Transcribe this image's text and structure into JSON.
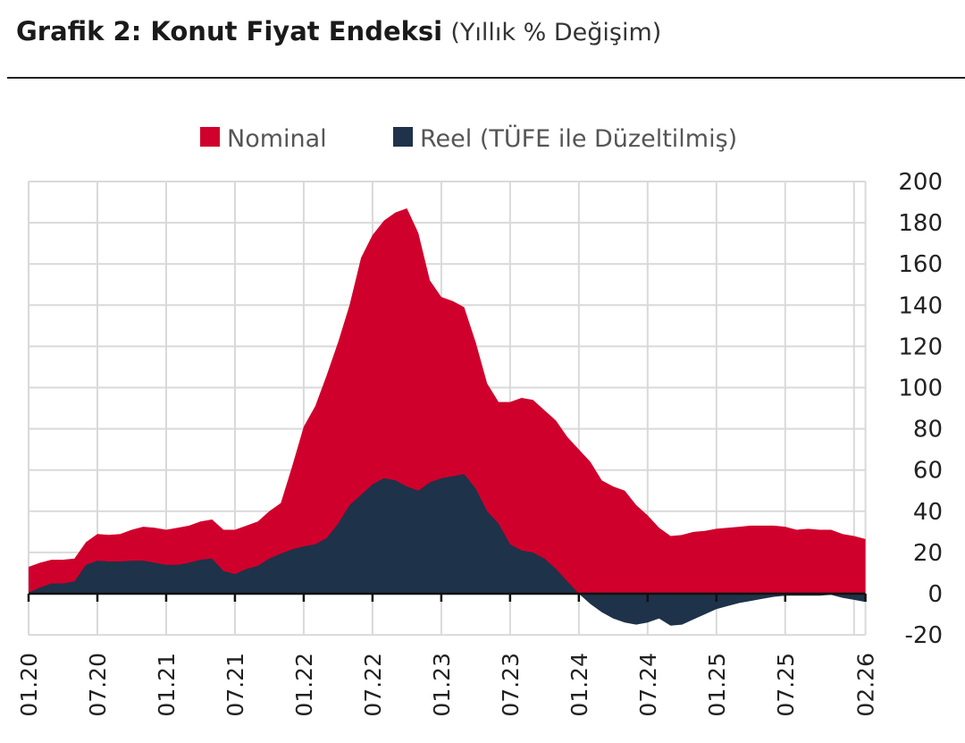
{
  "header": {
    "title_bold": "Grafik 2: Konut Fiyat Endeksi",
    "title_sub": "(Yıllık % Değişim)"
  },
  "colors": {
    "nominal": "#d0002c",
    "reel": "#1e3249",
    "grid": "#d9d9d9",
    "axis": "#111111"
  },
  "chart_data": {
    "type": "area",
    "title": "Grafik 2: Konut Fiyat Endeksi (Yıllık % Değişim)",
    "xlabel": "",
    "ylabel": "",
    "ylim": [
      -20,
      200
    ],
    "yticks": [
      200,
      180,
      160,
      140,
      120,
      100,
      80,
      60,
      40,
      20,
      0,
      -20
    ],
    "grid": true,
    "legend_position": "top-center",
    "x_start": "01.20",
    "x_end": "02.26",
    "frequency": "monthly",
    "x_tick_labels": [
      {
        "label": "01.20",
        "month_index": 0
      },
      {
        "label": "07.20",
        "month_index": 6
      },
      {
        "label": "01.21",
        "month_index": 12
      },
      {
        "label": "07.21",
        "month_index": 18
      },
      {
        "label": "01.22",
        "month_index": 24
      },
      {
        "label": "07.22",
        "month_index": 30
      },
      {
        "label": "01.23",
        "month_index": 36
      },
      {
        "label": "07.23",
        "month_index": 42
      },
      {
        "label": "01.24",
        "month_index": 48
      },
      {
        "label": "07.24",
        "month_index": 54
      },
      {
        "label": "01.25",
        "month_index": 60
      },
      {
        "label": "07.25",
        "month_index": 66
      },
      {
        "label": "02.26",
        "month_index": 73
      }
    ],
    "series": [
      {
        "name": "Nominal",
        "values": [
          13,
          15,
          16.5,
          16.5,
          17,
          25,
          29,
          28.5,
          29,
          31,
          32.5,
          32,
          31,
          32,
          33,
          35,
          36,
          31,
          31,
          33,
          35,
          40,
          44,
          62,
          81,
          91,
          106,
          122,
          140,
          163,
          174,
          181,
          185,
          187,
          175,
          152,
          144,
          142,
          139,
          122,
          102,
          93,
          93,
          95,
          94,
          89,
          84,
          76,
          70,
          64,
          55,
          52,
          50,
          43,
          38,
          32,
          28,
          28.5,
          30,
          30.5,
          31.5,
          32,
          32.5,
          33,
          33,
          33,
          32.5,
          31,
          31.5,
          31,
          31,
          29,
          28,
          26.5
        ]
      },
      {
        "name": "Reel (TÜFE ile Düzeltilmiş)",
        "values": [
          0.5,
          3,
          5,
          5,
          6,
          14,
          16,
          15.6,
          15.6,
          16,
          16,
          15,
          14,
          14,
          15,
          16.5,
          17,
          11,
          9.5,
          12,
          13.5,
          17,
          19.5,
          21.5,
          23,
          24,
          27,
          34,
          43,
          48,
          53,
          56,
          55,
          52,
          50,
          54,
          56,
          57,
          58,
          51,
          40,
          34,
          24,
          21,
          20,
          17,
          12,
          6,
          0,
          -5,
          -9,
          -12,
          -14,
          -15,
          -14,
          -12,
          -15.5,
          -15,
          -12.5,
          -10,
          -7.5,
          -6,
          -4.5,
          -3.5,
          -2.5,
          -1.5,
          -1,
          -1,
          -1,
          -1,
          -0.5,
          -2,
          -3,
          -4
        ]
      }
    ]
  }
}
